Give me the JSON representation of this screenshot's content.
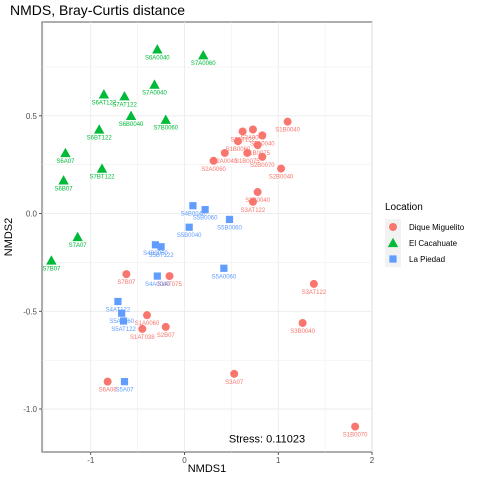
{
  "chart_data": {
    "type": "scatter",
    "title": "NMDS, Bray-Curtis distance",
    "xlabel": "NMDS1",
    "ylabel": "NMDS2",
    "xlim": [
      -1.52,
      2.0
    ],
    "ylim": [
      -1.22,
      0.98
    ],
    "xticks": [
      -1,
      0,
      1,
      2
    ],
    "yticks": [
      -1.0,
      -0.5,
      0.0,
      0.5
    ],
    "ytick_labels": [
      "-1.0",
      "-0.5",
      "0.0",
      "0.5"
    ],
    "grid": true,
    "legend_position": "right",
    "legend_title": "Location",
    "annotation": "Stress: 0.11023",
    "series": [
      {
        "name": "Dique Miguelito",
        "color": "#F8766D",
        "shape": "circle",
        "points": [
          {
            "x": 1.1,
            "y": 0.47,
            "label": "S1B0040"
          },
          {
            "x": 0.62,
            "y": 0.42,
            "label": "S2AT122"
          },
          {
            "x": 0.73,
            "y": 0.43,
            "label": "S3A0040"
          },
          {
            "x": 0.83,
            "y": 0.4,
            "label": "S1A0040"
          },
          {
            "x": 0.57,
            "y": 0.37,
            "label": "S1B0060"
          },
          {
            "x": 0.78,
            "y": 0.35,
            "label": "S1B0075"
          },
          {
            "x": 0.43,
            "y": 0.31,
            "label": "S2A0040"
          },
          {
            "x": 0.67,
            "y": 0.31,
            "label": "S1B0075"
          },
          {
            "x": 0.83,
            "y": 0.29,
            "label": "S2B0070"
          },
          {
            "x": 0.31,
            "y": 0.27,
            "label": "S2A0060"
          },
          {
            "x": 1.03,
            "y": 0.23,
            "label": "S2B0040"
          },
          {
            "x": 0.78,
            "y": 0.11,
            "label": "S3B0040"
          },
          {
            "x": 0.73,
            "y": 0.06,
            "label": "S3AT122"
          },
          {
            "x": -0.62,
            "y": -0.31,
            "label": "S7B07"
          },
          {
            "x": -0.16,
            "y": -0.32,
            "label": "S1AT075"
          },
          {
            "x": 1.38,
            "y": -0.36,
            "label": "S3AT122"
          },
          {
            "x": -0.4,
            "y": -0.52,
            "label": "S1A0060"
          },
          {
            "x": -0.45,
            "y": -0.59,
            "label": "S1AT038"
          },
          {
            "x": -0.2,
            "y": -0.58,
            "label": "S2B07"
          },
          {
            "x": 1.26,
            "y": -0.56,
            "label": "S3B0040"
          },
          {
            "x": -0.82,
            "y": -0.86,
            "label": "S6A08"
          },
          {
            "x": 0.53,
            "y": -0.82,
            "label": "S3A07"
          },
          {
            "x": 1.82,
            "y": -1.09,
            "label": "S1B0070"
          }
        ]
      },
      {
        "name": "El Cacahuate",
        "color": "#00BA38",
        "shape": "triangle",
        "points": [
          {
            "x": -0.29,
            "y": 0.84,
            "label": "S6A0040"
          },
          {
            "x": 0.2,
            "y": 0.81,
            "label": "S7A0060"
          },
          {
            "x": -0.32,
            "y": 0.66,
            "label": "S7A0040"
          },
          {
            "x": -0.86,
            "y": 0.61,
            "label": "S6AT122"
          },
          {
            "x": -0.64,
            "y": 0.6,
            "label": "S7AT122"
          },
          {
            "x": -0.57,
            "y": 0.5,
            "label": "S6B0040"
          },
          {
            "x": -0.2,
            "y": 0.48,
            "label": "S7B0060"
          },
          {
            "x": -0.91,
            "y": 0.43,
            "label": "S6BT122"
          },
          {
            "x": -1.27,
            "y": 0.31,
            "label": "S6A07"
          },
          {
            "x": -0.88,
            "y": 0.23,
            "label": "S7BT122"
          },
          {
            "x": -1.29,
            "y": 0.17,
            "label": "S6B07"
          },
          {
            "x": -1.14,
            "y": -0.12,
            "label": "S7A07"
          },
          {
            "x": -1.42,
            "y": -0.24,
            "label": "S7B07"
          }
        ]
      },
      {
        "name": "La Piedad",
        "color": "#619CFF",
        "shape": "square",
        "points": [
          {
            "x": 0.09,
            "y": 0.04,
            "label": "S4B0040"
          },
          {
            "x": 0.22,
            "y": 0.02,
            "label": "S5B0060"
          },
          {
            "x": 0.48,
            "y": -0.03,
            "label": "S5B0060"
          },
          {
            "x": 0.05,
            "y": -0.07,
            "label": "S5B0040"
          },
          {
            "x": -0.31,
            "y": -0.16,
            "label": "S4B0060"
          },
          {
            "x": -0.25,
            "y": -0.17,
            "label": "S5BT122"
          },
          {
            "x": 0.42,
            "y": -0.28,
            "label": "S5A0060"
          },
          {
            "x": -0.29,
            "y": -0.32,
            "label": "S4A0040"
          },
          {
            "x": -0.71,
            "y": -0.45,
            "label": "S4AT122"
          },
          {
            "x": -0.67,
            "y": -0.51,
            "label": "S5A0060"
          },
          {
            "x": -0.65,
            "y": -0.55,
            "label": "S5AT122"
          },
          {
            "x": -0.64,
            "y": -0.86,
            "label": "S5A07"
          }
        ]
      }
    ]
  }
}
